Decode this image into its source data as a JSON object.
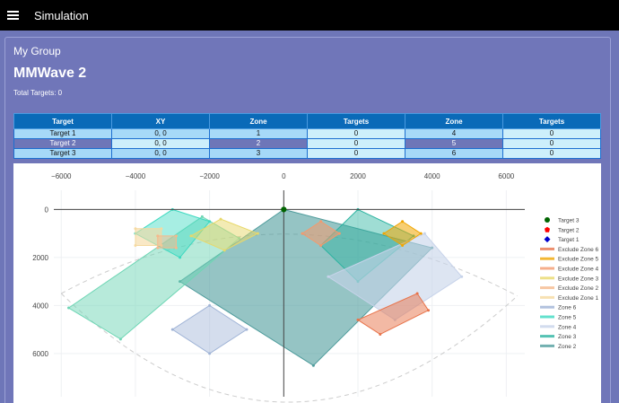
{
  "topbar": {
    "title": "Simulation",
    "menu_icon": "hamburger-menu-icon"
  },
  "card": {
    "group_title": "My Group",
    "device_title": "MMWave 2",
    "total_targets": "Total Targets: 0"
  },
  "table": {
    "headers": [
      "Target",
      "XY",
      "Zone",
      "Targets",
      "Zone",
      "Targets"
    ],
    "rows": [
      [
        "Target 1",
        "0, 0",
        "1",
        "0",
        "4",
        "0"
      ],
      [
        "Target 2",
        "0, 0",
        "2",
        "0",
        "5",
        "0"
      ],
      [
        "Target 3",
        "0, 0",
        "3",
        "0",
        "6",
        "0"
      ]
    ]
  },
  "chart_data": {
    "type": "scatter",
    "x_ticks": [
      "−6000",
      "−4000",
      "−2000",
      "0",
      "2000",
      "4000",
      "6000"
    ],
    "y_ticks": [
      "0",
      "2000",
      "4000",
      "6000"
    ],
    "xlim": [
      -6200,
      6500
    ],
    "ylim": [
      7800,
      -800
    ],
    "y_reversed": true,
    "legend_placement": "right",
    "legend": [
      {
        "name": "Target 3",
        "color": "#006400",
        "symbol": "circle"
      },
      {
        "name": "Target 2",
        "color": "#ff0000",
        "symbol": "pentagon"
      },
      {
        "name": "Target 1",
        "color": "#0000cc",
        "symbol": "diamond"
      },
      {
        "name": "Exclude Zone 6",
        "color": "#e8734a",
        "symbol": "line"
      },
      {
        "name": "Exclude Zone 5",
        "color": "#f0a500",
        "symbol": "line"
      },
      {
        "name": "Exclude Zone 4",
        "color": "#f49a6e",
        "symbol": "line"
      },
      {
        "name": "Exclude Zone 3",
        "color": "#e8d86a",
        "symbol": "line"
      },
      {
        "name": "Exclude Zone 2",
        "color": "#f5b98c",
        "symbol": "line"
      },
      {
        "name": "Exclude Zone 1",
        "color": "#f5d9a0",
        "symbol": "line"
      },
      {
        "name": "Zone 6",
        "color": "#9fb3d6",
        "symbol": "line"
      },
      {
        "name": "Zone 5",
        "color": "#3cd9c0",
        "symbol": "line"
      },
      {
        "name": "Zone 4",
        "color": "#c7d3ea",
        "symbol": "line"
      },
      {
        "name": "Zone 3",
        "color": "#2bb3a0",
        "symbol": "line"
      },
      {
        "name": "Zone 2",
        "color": "#4f9c9c",
        "symbol": "line"
      }
    ],
    "polygons": [
      {
        "name": "Zone 2",
        "color": "#4f9c9c",
        "opacity": 0.6,
        "points": [
          [
            0,
            0
          ],
          [
            4000,
            1600
          ],
          [
            800,
            6500
          ],
          [
            -2800,
            3000
          ]
        ]
      },
      {
        "name": "Zone 3",
        "color": "#2bb3a0",
        "opacity": 0.45,
        "points": [
          [
            2000,
            0
          ],
          [
            3500,
            1100
          ],
          [
            2000,
            3000
          ],
          [
            1000,
            1500
          ]
        ]
      },
      {
        "name": "Zone 1",
        "color": "#6fd6b5",
        "opacity": 0.5,
        "points": [
          [
            -2200,
            300
          ],
          [
            -1200,
            1200
          ],
          [
            -4400,
            5400
          ],
          [
            -5800,
            4100
          ]
        ]
      },
      {
        "name": "Zone 5",
        "color": "#3cd9c0",
        "opacity": 0.45,
        "points": [
          [
            -3000,
            0
          ],
          [
            -2000,
            500
          ],
          [
            -2800,
            2000
          ],
          [
            -4000,
            1000
          ]
        ]
      },
      {
        "name": "Zone 4",
        "color": "#c7d3ea",
        "opacity": 0.6,
        "points": [
          [
            3800,
            1000
          ],
          [
            4800,
            2800
          ],
          [
            3000,
            4600
          ],
          [
            1200,
            2800
          ]
        ]
      },
      {
        "name": "Zone 6",
        "color": "#9fb3d6",
        "opacity": 0.45,
        "points": [
          [
            -2000,
            4000
          ],
          [
            -1000,
            5000
          ],
          [
            -2000,
            6000
          ],
          [
            -3000,
            5000
          ]
        ]
      },
      {
        "name": "Exclude Zone 1",
        "color": "#f5d9a0",
        "opacity": 0.6,
        "points": [
          [
            -4000,
            800
          ],
          [
            -3300,
            800
          ],
          [
            -3300,
            1500
          ],
          [
            -4000,
            1500
          ]
        ]
      },
      {
        "name": "Exclude Zone 2",
        "color": "#f5b98c",
        "opacity": 0.5,
        "points": [
          [
            -3400,
            1100
          ],
          [
            -2900,
            1100
          ],
          [
            -2900,
            1600
          ],
          [
            -3400,
            1600
          ]
        ]
      },
      {
        "name": "Exclude Zone 3",
        "color": "#e8d86a",
        "opacity": 0.5,
        "points": [
          [
            -1700,
            400
          ],
          [
            -700,
            1000
          ],
          [
            -1600,
            1700
          ],
          [
            -2500,
            1100
          ]
        ]
      },
      {
        "name": "Exclude Zone 4",
        "color": "#f49a6e",
        "opacity": 0.55,
        "points": [
          [
            1000,
            500
          ],
          [
            1500,
            1000
          ],
          [
            1000,
            1500
          ],
          [
            500,
            1000
          ]
        ]
      },
      {
        "name": "Exclude Zone 5",
        "color": "#f0a500",
        "opacity": 0.55,
        "points": [
          [
            3200,
            500
          ],
          [
            3700,
            1000
          ],
          [
            3200,
            1500
          ],
          [
            2700,
            1000
          ]
        ]
      },
      {
        "name": "Exclude Zone 6",
        "color": "#e8734a",
        "opacity": 0.5,
        "points": [
          [
            3600,
            3500
          ],
          [
            3900,
            4200
          ],
          [
            2600,
            5200
          ],
          [
            2000,
            4600
          ]
        ]
      }
    ],
    "targets": [
      {
        "name": "Target 3",
        "x": 0,
        "y": 0
      },
      {
        "name": "Target 2",
        "x": 0,
        "y": 0
      },
      {
        "name": "Target 1",
        "x": 0,
        "y": 0
      }
    ]
  }
}
